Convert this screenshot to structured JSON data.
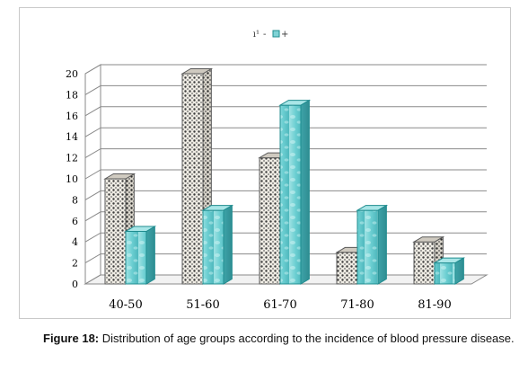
{
  "chart_data": {
    "type": "bar",
    "categories": [
      "40-50",
      "51-60",
      "61-70",
      "71-80",
      "81-90"
    ],
    "series": [
      {
        "name": "-",
        "values": [
          10,
          20,
          12,
          3,
          4
        ],
        "color": "#e8e4da",
        "pattern": "dots"
      },
      {
        "name": "+",
        "values": [
          5,
          7,
          17,
          7,
          2
        ],
        "color": "#7fd3d6",
        "pattern": "water"
      }
    ],
    "legend_prefix": "ı¹",
    "title": "",
    "xlabel": "",
    "ylabel": "",
    "ylim": [
      0,
      20
    ],
    "yticks": [
      0,
      2,
      4,
      6,
      8,
      10,
      12,
      14,
      16,
      18,
      20
    ],
    "grid": true,
    "legend_position": "top-center",
    "style": "3d"
  },
  "caption": {
    "label": "Figure 18:",
    "text": " Distribution of age groups according to the incidence of blood pressure disease."
  }
}
